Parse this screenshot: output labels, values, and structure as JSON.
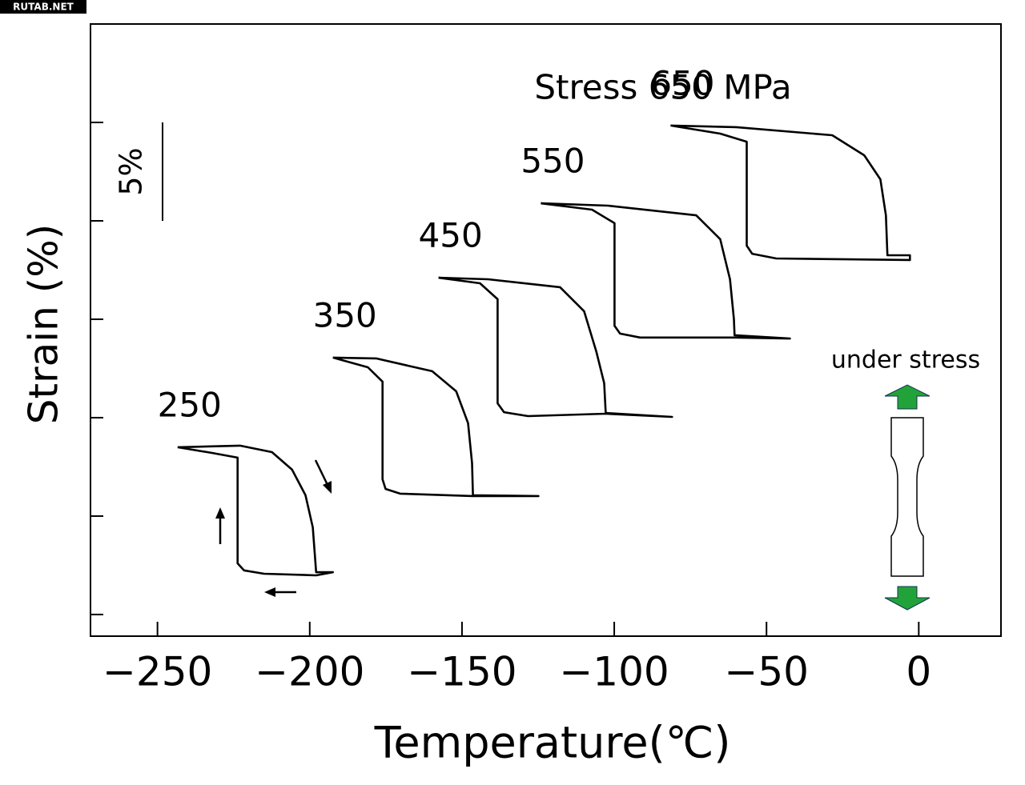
{
  "watermark": "RUTAB.NET",
  "chart_data": {
    "type": "line",
    "title": "Stress 650 MPa",
    "x_label": "Temperature(℃)",
    "y_label": "Strain (%)",
    "annotation": "under stress",
    "scale_bar": {
      "label": "5%",
      "value": 5
    },
    "xlim": [
      -272,
      27
    ],
    "ylim": [
      -1.1,
      30
    ],
    "xticks": [
      {
        "value": -250,
        "label": "−250"
      },
      {
        "value": -200,
        "label": "−200"
      },
      {
        "value": -150,
        "label": "−150"
      },
      {
        "value": -100,
        "label": "−100"
      },
      {
        "value": -50,
        "label": "−50"
      },
      0
    ],
    "yticks": [
      0,
      5,
      10,
      15,
      20,
      25
    ],
    "series": [
      {
        "name": "250",
        "color": "#000000",
        "x": [
          -243.4,
          -222.9,
          -212.4,
          -205.8,
          -201.4,
          -199.0,
          -198.2,
          -197.9,
          -192.4,
          -197.9,
          -215.0,
          -221.6,
          -223.7,
          -223.7,
          -232.1,
          -243.4
        ],
        "values": [
          8.5,
          8.58,
          8.25,
          7.36,
          6.06,
          4.43,
          2.8,
          2.15,
          2.15,
          1.99,
          2.07,
          2.24,
          2.6,
          7.97,
          8.21,
          8.5
        ]
      },
      {
        "name": "350",
        "color": "#000000",
        "x": [
          -192.4,
          -178.2,
          -159.8,
          -151.9,
          -148.0,
          -146.7,
          -146.4,
          -124.9,
          -146.4,
          -170.3,
          -175.1,
          -176.1,
          -176.1,
          -180.9,
          -192.4
        ],
        "values": [
          13.05,
          13.01,
          12.36,
          11.34,
          9.72,
          7.68,
          6.06,
          6.02,
          6.02,
          6.14,
          6.38,
          6.87,
          11.83,
          12.56,
          13.05
        ]
      },
      {
        "name": "450",
        "color": "#000000",
        "x": [
          -157.7,
          -141.4,
          -117.8,
          -109.9,
          -105.9,
          -103.3,
          -102.8,
          -81.0,
          -102.8,
          -128.3,
          -136.2,
          -138.3,
          -138.3,
          -144.1,
          -157.7
        ],
        "values": [
          17.11,
          17.03,
          16.63,
          15.41,
          13.37,
          11.75,
          10.24,
          10.04,
          10.2,
          10.08,
          10.28,
          10.73,
          16.02,
          16.83,
          17.11
        ]
      },
      {
        "name": "550",
        "color": "#000000",
        "x": [
          -124.1,
          -102.0,
          -73.1,
          -65.2,
          -62.0,
          -60.7,
          -60.5,
          -42.3,
          -60.5,
          -91.5,
          -98.1,
          -99.9,
          -99.9,
          -107.3,
          -124.1
        ],
        "values": [
          20.89,
          20.77,
          20.28,
          19.07,
          17.03,
          15.0,
          14.19,
          14.02,
          14.07,
          14.07,
          14.27,
          14.67,
          19.88,
          20.57,
          20.89
        ]
      },
      {
        "name": "650",
        "color": "#000000",
        "x": [
          -81.5,
          -59.9,
          -28.4,
          -17.9,
          -12.6,
          -10.8,
          -10.3,
          -2.9,
          -2.9,
          -46.8,
          -54.7,
          -56.5,
          -56.5,
          -65.2,
          -81.5
        ],
        "values": [
          24.84,
          24.76,
          24.35,
          23.33,
          22.11,
          20.28,
          18.25,
          18.25,
          18.01,
          18.09,
          18.33,
          18.74,
          24.02,
          24.43,
          24.84
        ]
      }
    ]
  }
}
